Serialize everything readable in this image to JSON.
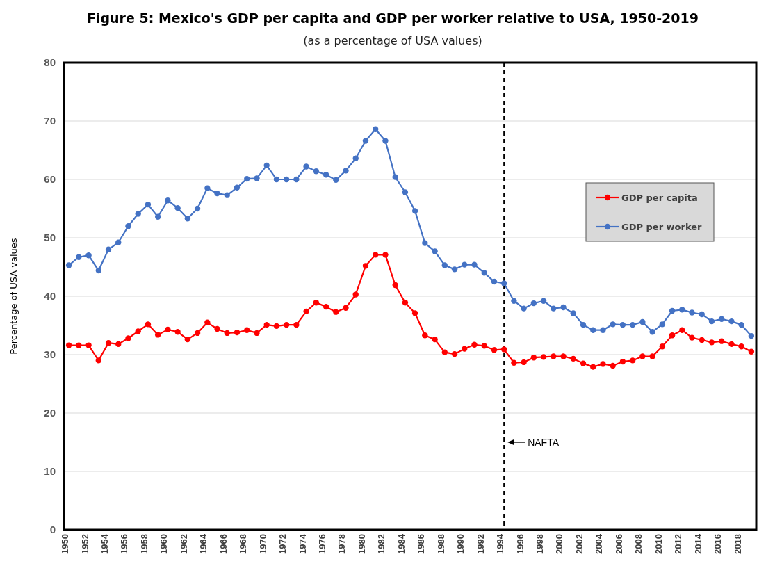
{
  "chart_data": {
    "type": "line",
    "title": "Figure 5: Mexico's GDP per capita and GDP per worker relative to USA, 1950-2019",
    "subtitle": "(as a percentage of USA values)",
    "ylabel": "Percentage of USA values",
    "x": [
      1950,
      1951,
      1952,
      1953,
      1954,
      1955,
      1956,
      1957,
      1958,
      1959,
      1960,
      1961,
      1962,
      1963,
      1964,
      1965,
      1966,
      1967,
      1968,
      1969,
      1970,
      1971,
      1972,
      1973,
      1974,
      1975,
      1976,
      1977,
      1978,
      1979,
      1980,
      1981,
      1982,
      1983,
      1984,
      1985,
      1986,
      1987,
      1988,
      1989,
      1990,
      1991,
      1992,
      1993,
      1994,
      1995,
      1996,
      1997,
      1998,
      1999,
      2000,
      2001,
      2002,
      2003,
      2004,
      2005,
      2006,
      2007,
      2008,
      2009,
      2010,
      2011,
      2012,
      2013,
      2014,
      2015,
      2016,
      2017,
      2018,
      2019
    ],
    "series": [
      {
        "name": "GDP per capita",
        "color": "#ff0000",
        "values": [
          31.6,
          31.6,
          31.6,
          29.0,
          32.0,
          31.8,
          32.8,
          34.0,
          35.2,
          33.4,
          34.3,
          33.9,
          32.6,
          33.7,
          35.5,
          34.4,
          33.7,
          33.8,
          34.2,
          33.7,
          35.1,
          34.9,
          35.1,
          35.1,
          37.4,
          38.9,
          38.2,
          37.3,
          38.0,
          40.3,
          45.2,
          47.1,
          47.1,
          41.9,
          38.9,
          37.1,
          33.3,
          32.6,
          30.4,
          30.1,
          31.0,
          31.7,
          31.5,
          30.8,
          30.9,
          28.6,
          28.7,
          29.5,
          29.6,
          29.7,
          29.7,
          29.3,
          28.5,
          27.9,
          28.4,
          28.1,
          28.8,
          29.0,
          29.7,
          29.7,
          31.4,
          33.3,
          34.2,
          32.9,
          32.5,
          32.1,
          32.3,
          31.8,
          31.4,
          30.5
        ]
      },
      {
        "name": "GDP per worker",
        "color": "#4472c4",
        "values": [
          45.3,
          46.7,
          47.0,
          44.4,
          48.0,
          49.2,
          52.0,
          54.1,
          55.7,
          53.6,
          56.4,
          55.1,
          53.3,
          55.0,
          58.5,
          57.6,
          57.3,
          58.6,
          60.1,
          60.2,
          62.4,
          60.0,
          60.0,
          60.0,
          62.2,
          61.4,
          60.8,
          59.9,
          61.5,
          63.6,
          66.6,
          68.6,
          66.6,
          60.4,
          57.8,
          54.6,
          49.1,
          47.7,
          45.3,
          44.6,
          45.4,
          45.4,
          44.0,
          42.5,
          42.2,
          39.2,
          37.9,
          38.8,
          39.2,
          37.9,
          38.1,
          37.1,
          35.1,
          34.2,
          34.2,
          35.2,
          35.1,
          35.1,
          35.6,
          33.9,
          35.2,
          37.5,
          37.7,
          37.2,
          36.9,
          35.7,
          36.1,
          35.7,
          35.1,
          33.2
        ]
      }
    ],
    "xlim": [
      1949.5,
      2019.5
    ],
    "xticks": [
      1950,
      1952,
      1954,
      1956,
      1958,
      1960,
      1962,
      1964,
      1966,
      1968,
      1970,
      1972,
      1974,
      1976,
      1978,
      1980,
      1982,
      1984,
      1986,
      1988,
      1990,
      1992,
      1994,
      1996,
      1998,
      2000,
      2002,
      2004,
      2006,
      2008,
      2010,
      2012,
      2014,
      2016,
      2018
    ],
    "ylim": [
      0,
      80
    ],
    "yticks": [
      0,
      10,
      20,
      30,
      40,
      50,
      60,
      70,
      80
    ],
    "ref_lines": [
      {
        "axis": "x",
        "value": 1994,
        "label": "NAFTA",
        "color": "#000000",
        "line_style": "dashed"
      }
    ],
    "grid": "y",
    "legend": "right",
    "marker": "circle",
    "line_style": "solid"
  }
}
